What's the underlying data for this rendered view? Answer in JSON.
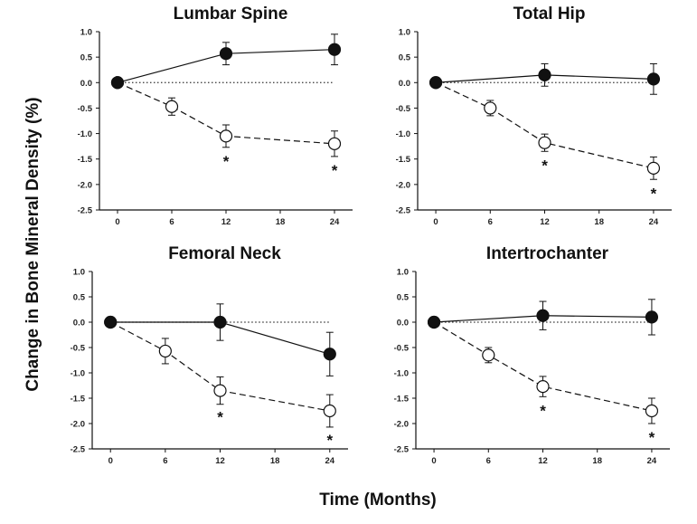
{
  "figure": {
    "ylabel": "Change in Bone Mineral Density (%)",
    "xlabel": "Time (Months)"
  },
  "chart_data": [
    {
      "type": "line",
      "title": "Lumbar Spine",
      "xlim": [
        -2,
        26
      ],
      "ylim": [
        -2.5,
        1.0
      ],
      "xticks": [
        0,
        6,
        12,
        18,
        24
      ],
      "yticks": [
        1.0,
        0.5,
        0.0,
        -0.5,
        -1.0,
        -1.5,
        -2.0,
        -2.5
      ],
      "tick_labels_x": [
        "0",
        "6",
        "12",
        "18",
        "24"
      ],
      "tick_labels_y": [
        "1.0",
        "0.5",
        "0.0",
        "-0.5",
        "-1.0",
        "-1.5",
        "-2.0",
        "-2.5"
      ],
      "reference_line": {
        "y": 0,
        "style": "dotted"
      },
      "series": [
        {
          "marker": "filled-circle",
          "line": "solid",
          "x": [
            0,
            12,
            24
          ],
          "y": [
            0.0,
            0.57,
            0.65
          ],
          "err": [
            0,
            0.22,
            0.3
          ]
        },
        {
          "marker": "open-circle",
          "line": "dashed",
          "x": [
            0,
            6,
            12,
            24
          ],
          "y": [
            0.0,
            -0.47,
            -1.05,
            -1.2
          ],
          "err": [
            0,
            0.17,
            0.22,
            0.25
          ]
        }
      ],
      "annotations": [
        {
          "text": "*",
          "x": 12,
          "y": -1.52
        },
        {
          "text": "*",
          "x": 24,
          "y": -1.7
        }
      ]
    },
    {
      "type": "line",
      "title": "Total Hip",
      "xlim": [
        -2,
        26
      ],
      "ylim": [
        -2.5,
        1.0
      ],
      "xticks": [
        0,
        6,
        12,
        18,
        24
      ],
      "yticks": [
        1.0,
        0.5,
        0.0,
        -0.5,
        -1.0,
        -1.5,
        -2.0,
        -2.5
      ],
      "tick_labels_x": [
        "0",
        "6",
        "12",
        "18",
        "24"
      ],
      "tick_labels_y": [
        "1.0",
        "0.5",
        "0.0",
        "-0.5",
        "-1.0",
        "-1.5",
        "-2.0",
        "-2.5"
      ],
      "reference_line": {
        "y": 0,
        "style": "dotted"
      },
      "series": [
        {
          "marker": "filled-circle",
          "line": "solid",
          "x": [
            0,
            12,
            24
          ],
          "y": [
            0.0,
            0.15,
            0.07
          ],
          "err": [
            0,
            0.22,
            0.3
          ]
        },
        {
          "marker": "open-circle",
          "line": "dashed",
          "x": [
            0,
            6,
            12,
            24
          ],
          "y": [
            0.0,
            -0.5,
            -1.18,
            -1.68
          ],
          "err": [
            0,
            0.15,
            0.17,
            0.22
          ]
        }
      ],
      "annotations": [
        {
          "text": "*",
          "x": 12,
          "y": -1.6
        },
        {
          "text": "*",
          "x": 24,
          "y": -2.15
        }
      ]
    },
    {
      "type": "line",
      "title": "Femoral Neck",
      "xlim": [
        -2,
        26
      ],
      "ylim": [
        -2.5,
        1.0
      ],
      "xticks": [
        0,
        6,
        12,
        18,
        24
      ],
      "yticks": [
        1.0,
        0.5,
        0.0,
        -0.5,
        -1.0,
        -1.5,
        -2.0,
        -2.5
      ],
      "tick_labels_x": [
        "0",
        "6",
        "12",
        "18",
        "24"
      ],
      "tick_labels_y": [
        "1.0",
        "0.5",
        "0.0",
        "-0.5",
        "-1.0",
        "-1.5",
        "-2.0",
        "-2.5"
      ],
      "reference_line": {
        "y": 0,
        "style": "dotted"
      },
      "series": [
        {
          "marker": "filled-circle",
          "line": "solid",
          "x": [
            0,
            12,
            24
          ],
          "y": [
            0.0,
            0.0,
            -0.63
          ],
          "err": [
            0,
            0.36,
            0.43
          ]
        },
        {
          "marker": "open-circle",
          "line": "dashed",
          "x": [
            0,
            6,
            12,
            24
          ],
          "y": [
            0.0,
            -0.57,
            -1.35,
            -1.75
          ],
          "err": [
            0,
            0.25,
            0.27,
            0.32
          ]
        }
      ],
      "annotations": [
        {
          "text": "*",
          "x": 12,
          "y": -1.85
        },
        {
          "text": "*",
          "x": 24,
          "y": -2.3
        }
      ]
    },
    {
      "type": "line",
      "title": "Intertrochanter",
      "xlim": [
        -2,
        26
      ],
      "ylim": [
        -2.5,
        1.0
      ],
      "xticks": [
        0,
        6,
        12,
        18,
        24
      ],
      "yticks": [
        1.0,
        0.5,
        0.0,
        -0.5,
        -1.0,
        -1.5,
        -2.0,
        -2.5
      ],
      "tick_labels_x": [
        "0",
        "6",
        "12",
        "18",
        "24"
      ],
      "tick_labels_y": [
        "1.0",
        "0.5",
        "0.0",
        "-0.5",
        "-1.0",
        "-1.5",
        "-2.0",
        "-2.5"
      ],
      "reference_line": {
        "y": 0,
        "style": "dotted"
      },
      "series": [
        {
          "marker": "filled-circle",
          "line": "solid",
          "x": [
            0,
            12,
            24
          ],
          "y": [
            0.0,
            0.13,
            0.1
          ],
          "err": [
            0,
            0.28,
            0.35
          ]
        },
        {
          "marker": "open-circle",
          "line": "dashed",
          "x": [
            0,
            6,
            12,
            24
          ],
          "y": [
            0.0,
            -0.65,
            -1.27,
            -1.75
          ],
          "err": [
            0,
            0.15,
            0.2,
            0.25
          ]
        }
      ],
      "annotations": [
        {
          "text": "*",
          "x": 12,
          "y": -1.72
        },
        {
          "text": "*",
          "x": 24,
          "y": -2.25
        }
      ]
    }
  ]
}
